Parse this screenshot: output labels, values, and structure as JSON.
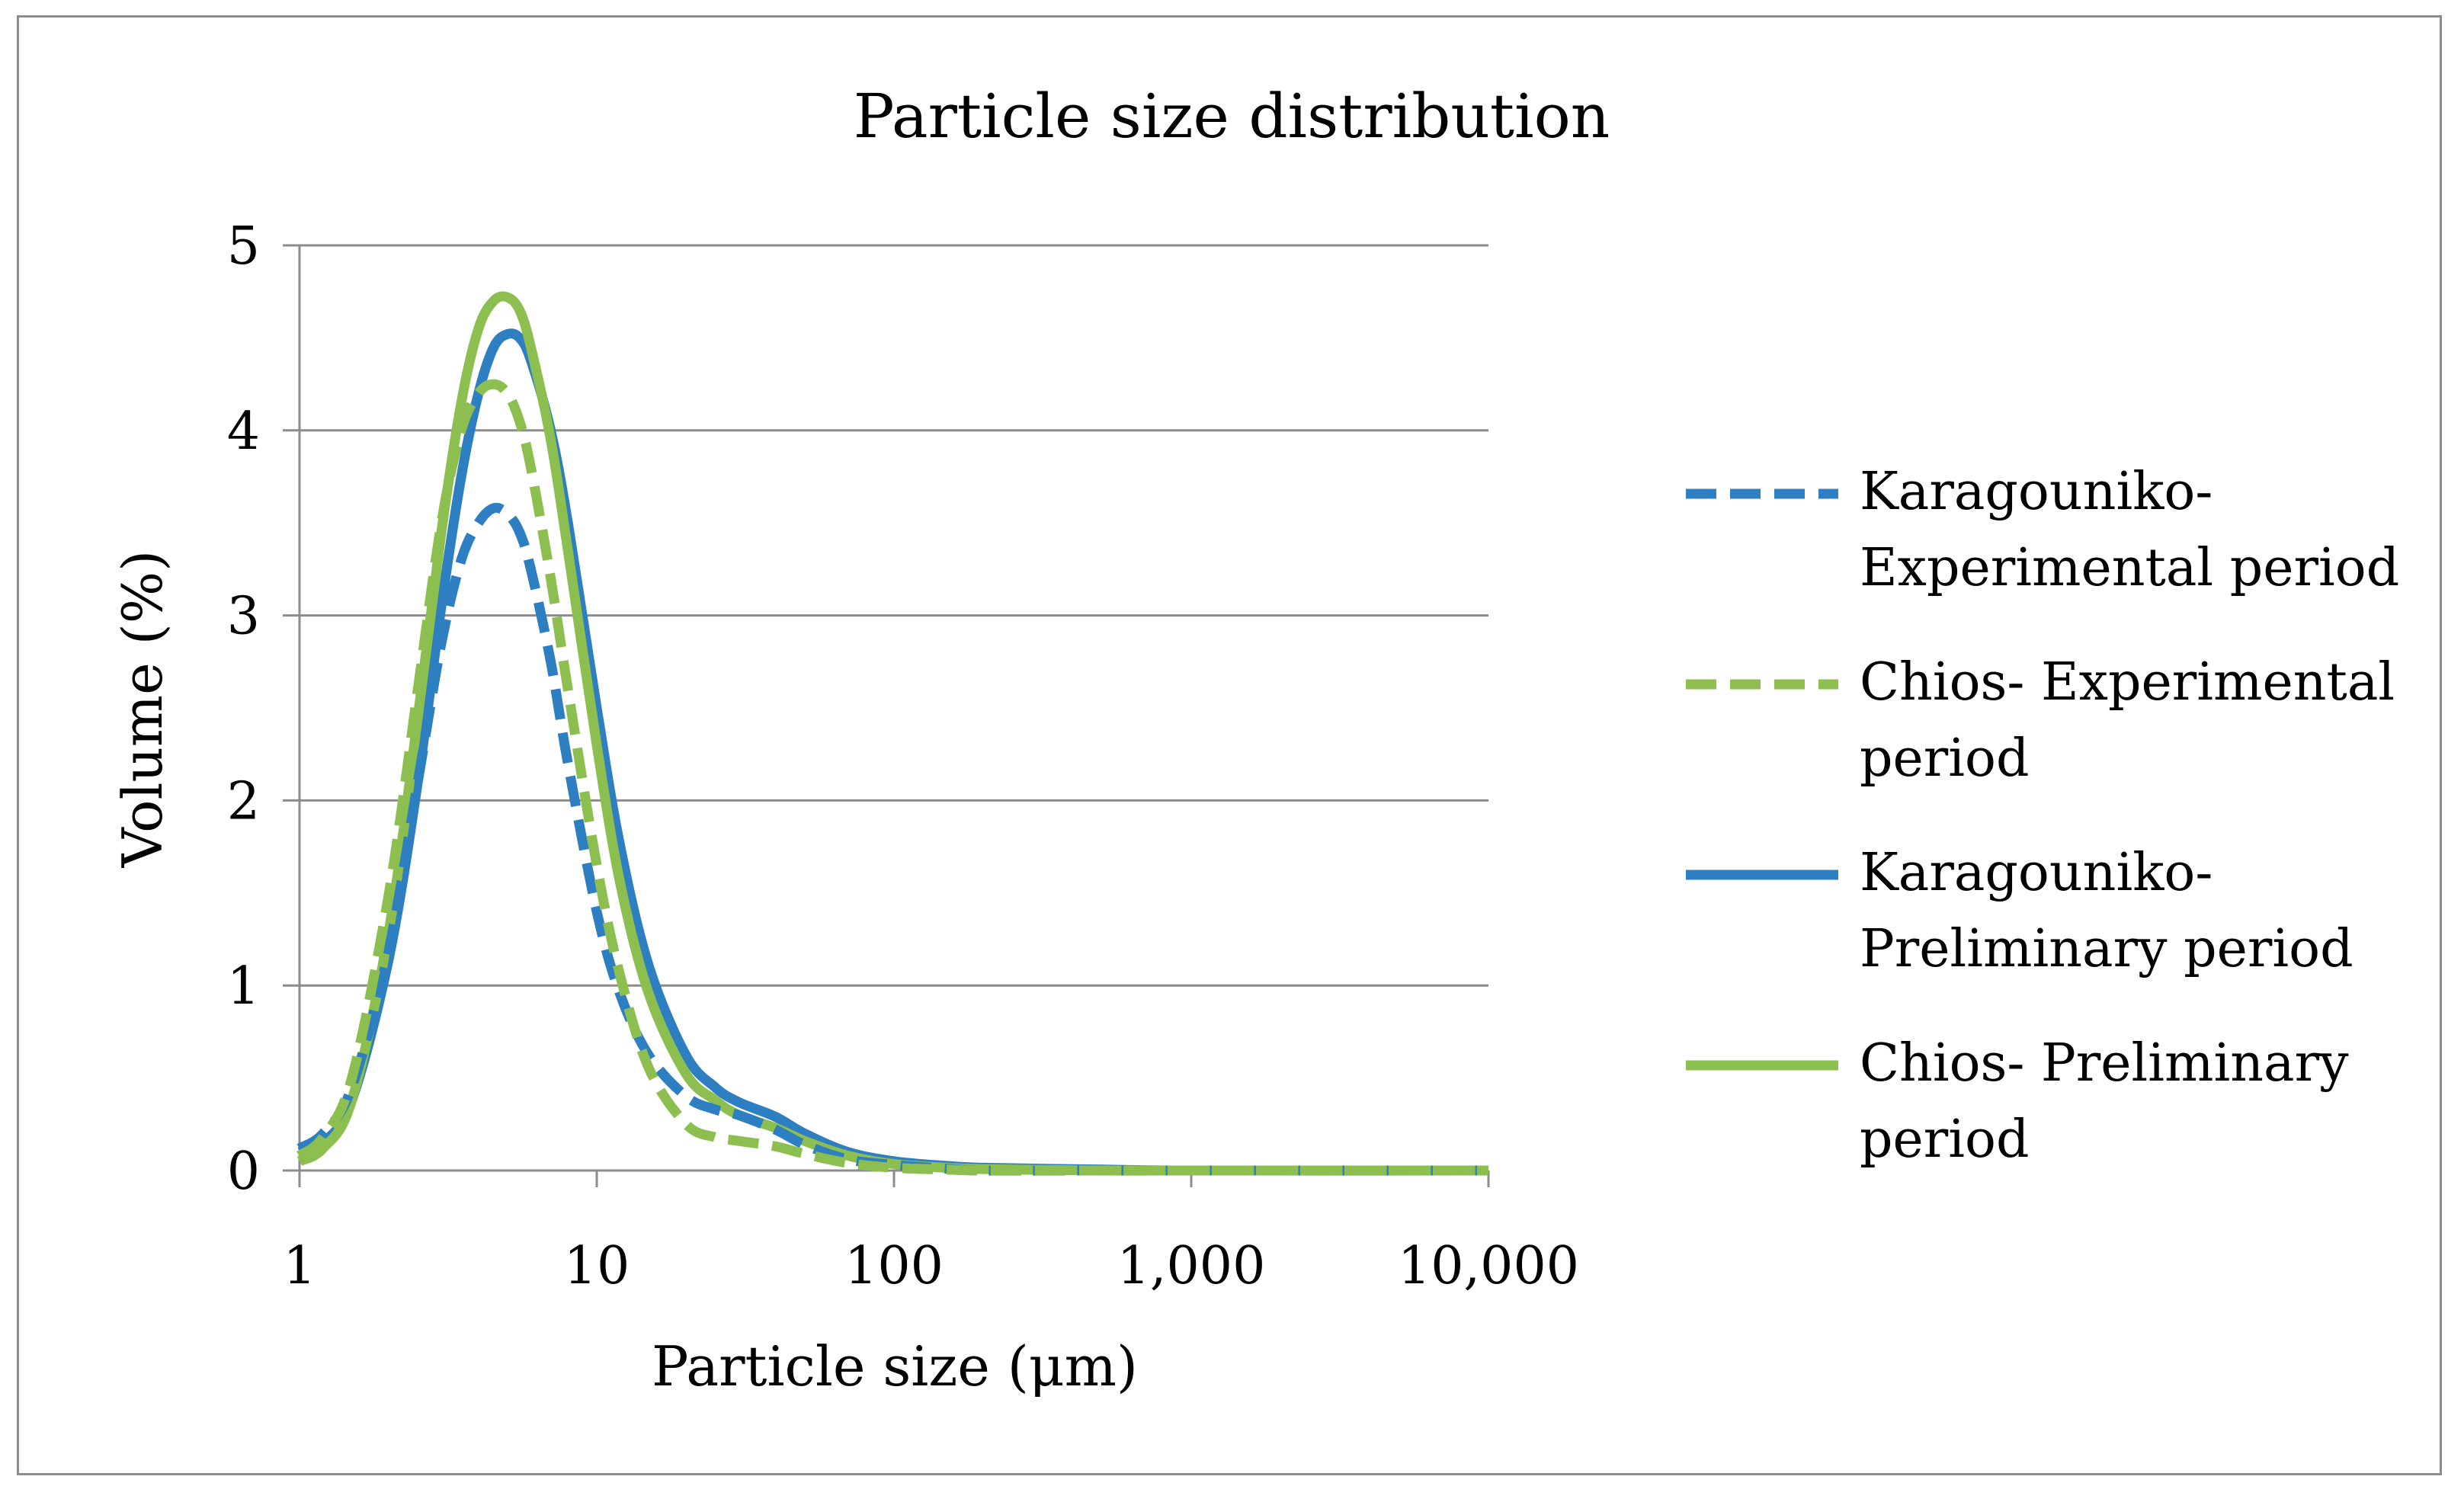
{
  "chart_data": {
    "type": "line",
    "title": "Particle size distribution",
    "xlabel": "Particle size (μm)",
    "ylabel": "Volume (%)",
    "xscale": "log",
    "xlim": [
      1,
      10000
    ],
    "ylim": [
      0,
      5
    ],
    "x_ticks": [
      "1",
      "10",
      "100",
      "1,000",
      "10,000"
    ],
    "y_ticks": [
      "0",
      "1",
      "2",
      "3",
      "4",
      "5"
    ],
    "grid": "horizontal",
    "legend_position": "right",
    "colors": {
      "blue": "#2e7fc1",
      "green": "#8cbf4f",
      "grid": "#8c8c8c"
    },
    "series": [
      {
        "name_lines": [
          "Karagouniko-",
          "Experimental period"
        ],
        "color": "#2e7fc1",
        "dash": "dashed",
        "x": [
          1,
          1.2,
          1.5,
          2,
          2.5,
          3,
          3.5,
          4,
          4.5,
          5,
          5.5,
          6,
          7,
          8,
          10,
          12,
          15,
          20,
          25,
          30,
          40,
          50,
          70,
          100,
          150,
          200,
          500,
          1000,
          10000
        ],
        "y": [
          0.12,
          0.2,
          0.45,
          1.2,
          2.1,
          2.85,
          3.3,
          3.5,
          3.58,
          3.55,
          3.45,
          3.25,
          2.75,
          2.2,
          1.4,
          0.95,
          0.62,
          0.4,
          0.33,
          0.3,
          0.22,
          0.14,
          0.06,
          0.03,
          0.01,
          0,
          0,
          0,
          0
        ]
      },
      {
        "name_lines": [
          "Chios- Experimental",
          "period"
        ],
        "color": "#8cbf4f",
        "dash": "dashed",
        "x": [
          1,
          1.2,
          1.5,
          2,
          2.5,
          3,
          3.5,
          4,
          4.5,
          5,
          5.5,
          6,
          7,
          8,
          10,
          12,
          15,
          20,
          25,
          30,
          40,
          50,
          70,
          100,
          150,
          200,
          500,
          1000,
          10000
        ],
        "y": [
          0.08,
          0.18,
          0.5,
          1.5,
          2.6,
          3.5,
          4.0,
          4.2,
          4.25,
          4.2,
          4.05,
          3.8,
          3.2,
          2.6,
          1.65,
          1.05,
          0.55,
          0.25,
          0.18,
          0.16,
          0.13,
          0.09,
          0.04,
          0.015,
          0.005,
          0,
          0,
          0,
          0
        ]
      },
      {
        "name_lines": [
          "Karagouniko-",
          "Preliminary period"
        ],
        "color": "#2e7fc1",
        "dash": "solid",
        "x": [
          1,
          1.2,
          1.5,
          2,
          2.5,
          3,
          3.5,
          4,
          4.5,
          5,
          5.5,
          6,
          7,
          8,
          10,
          12,
          15,
          20,
          25,
          30,
          40,
          50,
          70,
          100,
          150,
          200,
          500,
          1000,
          10000
        ],
        "y": [
          0.1,
          0.15,
          0.38,
          1.15,
          2.1,
          3.05,
          3.75,
          4.2,
          4.45,
          4.52,
          4.5,
          4.38,
          4.0,
          3.5,
          2.5,
          1.75,
          1.1,
          0.62,
          0.45,
          0.37,
          0.29,
          0.2,
          0.1,
          0.05,
          0.025,
          0.015,
          0.005,
          0,
          0
        ]
      },
      {
        "name_lines": [
          "Chios- Preliminary",
          "period"
        ],
        "color": "#8cbf4f",
        "dash": "solid",
        "x": [
          1,
          1.2,
          1.5,
          2,
          2.5,
          3,
          3.5,
          4,
          4.5,
          5,
          5.5,
          6,
          7,
          8,
          10,
          12,
          15,
          20,
          25,
          30,
          40,
          50,
          70,
          100,
          150,
          200,
          500,
          1000,
          10000
        ],
        "y": [
          0.05,
          0.12,
          0.38,
          1.3,
          2.45,
          3.45,
          4.15,
          4.55,
          4.7,
          4.72,
          4.65,
          4.45,
          3.95,
          3.35,
          2.3,
          1.55,
          0.95,
          0.52,
          0.38,
          0.3,
          0.23,
          0.16,
          0.08,
          0.035,
          0.015,
          0.008,
          0,
          0,
          0
        ]
      }
    ]
  }
}
